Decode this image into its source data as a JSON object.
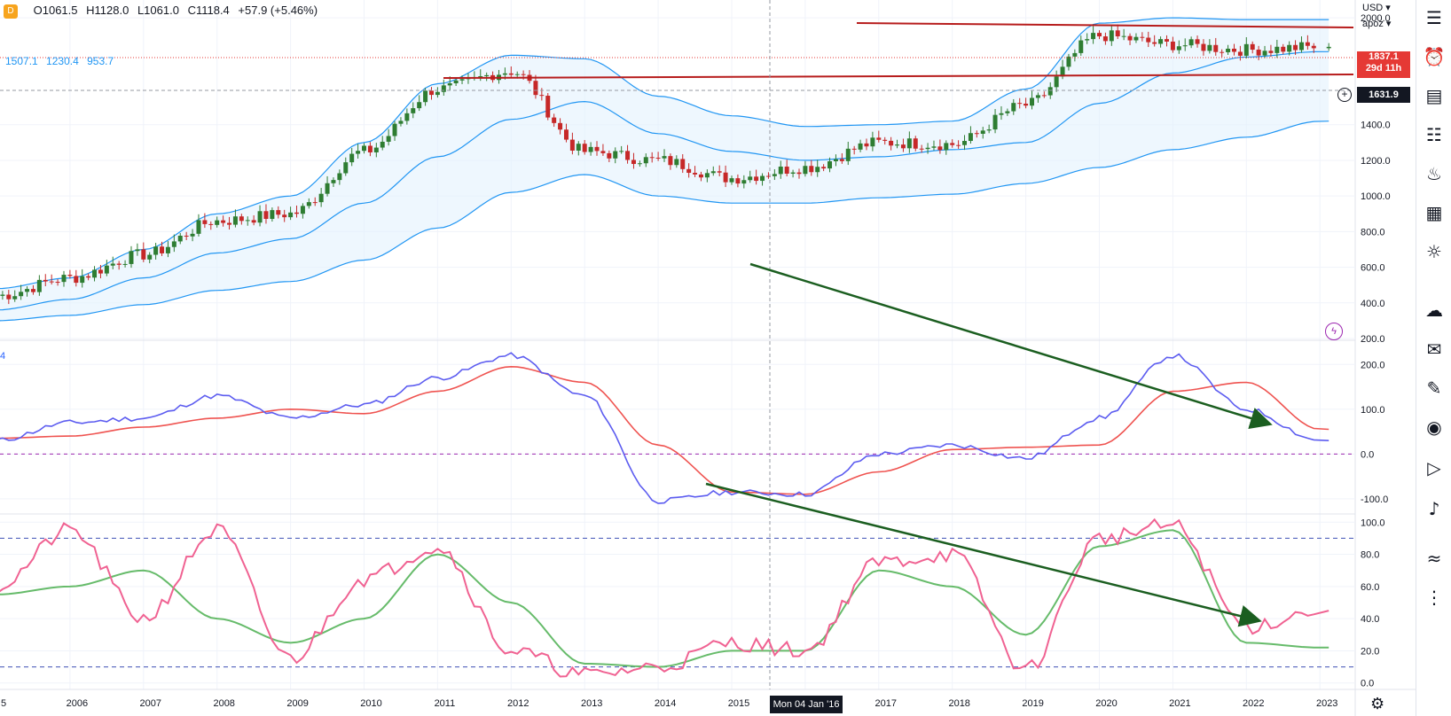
{
  "ohlc_header": {
    "open": "O1061.5",
    "high": "H1128.0",
    "low": "L1061.0",
    "close": "C1118.4",
    "change": "+57.9 (+5.46%)"
  },
  "bb_legend": [
    "1507.1",
    "1230.4",
    "953.7"
  ],
  "macd_tag": "4",
  "controls": {
    "currency": "USD",
    "scale": "apoz"
  },
  "price_tags": {
    "last_price": "1837.1",
    "countdown": "29d 11h",
    "crosshair_price": "1631.9"
  },
  "crosshair_date": "Mon 04 Jan '16",
  "colors": {
    "up_candle": "#26a69a",
    "up_candle_fill": "#2e7d32",
    "down_candle": "#c62828",
    "bb_line": "#2196f3",
    "bb_fill": "#e3f2fd",
    "macd_line": "#5c5cf0",
    "signal_line": "#ef5350",
    "stoch_k": "#f06292",
    "stoch_d": "#66bb6a",
    "trendline": "#1b5e20",
    "resistance": "#b71c1c",
    "zero_line": "#9c27b0"
  },
  "toolbar_icons": [
    "watchlist-icon",
    "alarm-clock-icon",
    "news-icon",
    "data-window-icon",
    "hotlist-icon",
    "calendar-icon",
    "ideas-icon",
    "chat-icon",
    "chats-icon",
    "notes-icon",
    "stream-icon",
    "playback-icon",
    "notifications-icon",
    "pattern-icon",
    "more-icon"
  ],
  "chart_data": [
    {
      "type": "candlestick",
      "title": "",
      "x_labels": [
        "5",
        "2006",
        "2007",
        "2008",
        "2009",
        "2010",
        "2011",
        "2012",
        "2013",
        "2014",
        "2015",
        "2017",
        "2018",
        "2019",
        "2020",
        "2021",
        "2022",
        "2023"
      ],
      "ylim": [
        200,
        2100
      ],
      "y_ticks": [
        "2000.0",
        "1400.0",
        "1200.0",
        "1000.0",
        "800.0",
        "600.0",
        "400.0",
        "200.0"
      ],
      "grid": true,
      "resistance_levels": [
        2050,
        1830
      ],
      "series_close_yearly": {
        "x": [
          "2005",
          "2006",
          "2007",
          "2008",
          "2009",
          "2010",
          "2011",
          "2012",
          "2013",
          "2014",
          "2015",
          "2016",
          "2017",
          "2018",
          "2019",
          "2020",
          "2021",
          "2022",
          "2023"
        ],
        "values": [
          440,
          540,
          670,
          860,
          900,
          1250,
          1600,
          1700,
          1250,
          1200,
          1100,
          1160,
          1300,
          1290,
          1510,
          1900,
          1850,
          1820,
          1837
        ]
      },
      "bollinger": {
        "upper": [
          480,
          540,
          700,
          900,
          1000,
          1300,
          1630,
          1790,
          1770,
          1560,
          1450,
          1390,
          1400,
          1420,
          1600,
          1970,
          2000,
          1990,
          1990
        ],
        "middle": [
          360,
          420,
          540,
          680,
          760,
          960,
          1220,
          1430,
          1530,
          1350,
          1250,
          1200,
          1220,
          1260,
          1300,
          1520,
          1690,
          1780,
          1810
        ],
        "lower": [
          300,
          330,
          390,
          470,
          520,
          640,
          820,
          1020,
          1120,
          1000,
          960,
          960,
          990,
          1010,
          1070,
          1160,
          1260,
          1330,
          1420
        ]
      }
    },
    {
      "type": "line",
      "title": "",
      "ylim": [
        -130,
        250
      ],
      "y_ticks": [
        "200.0",
        "100.0",
        "0.0",
        "-100.0"
      ],
      "x": [
        "2005",
        "2006",
        "2007",
        "2008",
        "2009",
        "2010",
        "2011",
        "2012",
        "2013",
        "2014",
        "2015",
        "2016",
        "2017",
        "2018",
        "2019",
        "2020",
        "2021",
        "2022",
        "2023"
      ],
      "series": [
        {
          "name": "",
          "values": [
            30,
            70,
            80,
            130,
            80,
            110,
            170,
            220,
            130,
            -105,
            -85,
            -90,
            0,
            20,
            -10,
            80,
            220,
            100,
            30
          ]
        },
        {
          "name": "",
          "values": [
            35,
            40,
            60,
            80,
            100,
            90,
            140,
            195,
            160,
            20,
            -85,
            -90,
            -40,
            10,
            15,
            20,
            140,
            160,
            55
          ]
        }
      ]
    },
    {
      "type": "line",
      "title": "",
      "ylim": [
        0,
        100
      ],
      "y_ticks": [
        "100.0",
        "80.0",
        "60.0",
        "40.0",
        "20.0",
        "0.0"
      ],
      "bands": [
        90,
        10
      ],
      "x": [
        "2005",
        "2006",
        "2007",
        "2008",
        "2009",
        "2010",
        "2011",
        "2012",
        "2013",
        "2014",
        "2015",
        "2016",
        "2017",
        "2018",
        "2019",
        "2020",
        "2021",
        "2022",
        "2023"
      ],
      "series": [
        {
          "name": "",
          "values": [
            60,
            95,
            40,
            95,
            15,
            65,
            85,
            20,
            5,
            10,
            25,
            20,
            75,
            80,
            8,
            90,
            98,
            35,
            45
          ]
        },
        {
          "name": "",
          "values": [
            55,
            60,
            70,
            40,
            25,
            40,
            80,
            50,
            12,
            10,
            20,
            20,
            70,
            60,
            30,
            85,
            95,
            25,
            22
          ]
        }
      ]
    }
  ]
}
